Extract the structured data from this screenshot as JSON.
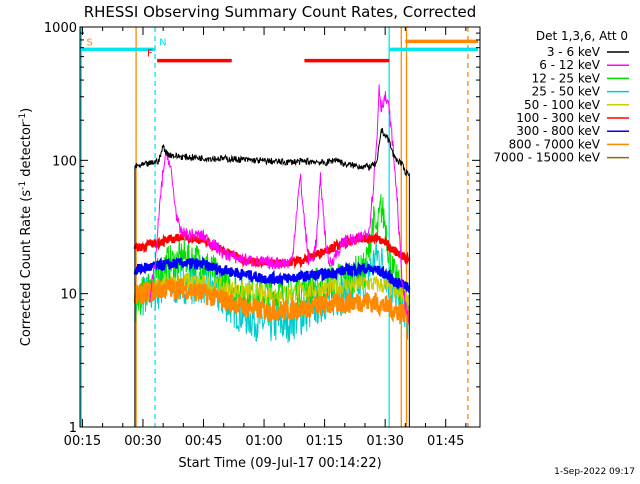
{
  "chart_data": {
    "type": "line",
    "title": "RHESSI Observing Summary Count Rates, Corrected",
    "xlabel": "Start Time (09-Jul-17 00:14:22)",
    "ylabel": "Corrected Count Rate (s⁻¹ detector⁻¹)",
    "ylabel_main": "Corrected Count Rate (s",
    "ylabel_sup1": "-1",
    "ylabel_mid": " detector",
    "ylabel_sup2": "-1",
    "ylabel_end": ")",
    "x_unit": "minutes after 00:00 UT",
    "xlim": [
      14.4,
      113.5
    ],
    "ylim": [
      1,
      1000
    ],
    "yscale": "log",
    "x_ticks": [
      {
        "value": 15,
        "label": "00:15"
      },
      {
        "value": 30,
        "label": "00:30"
      },
      {
        "value": 45,
        "label": "00:45"
      },
      {
        "value": 60,
        "label": "01:00"
      },
      {
        "value": 75,
        "label": "01:15"
      },
      {
        "value": 90,
        "label": "01:30"
      },
      {
        "value": 105,
        "label": "01:45"
      }
    ],
    "y_ticks": [
      {
        "value": 1,
        "label": "1"
      },
      {
        "value": 10,
        "label": "10"
      },
      {
        "value": 100,
        "label": "100"
      },
      {
        "value": 1000,
        "label": "1000"
      }
    ],
    "legend_title": "Det 1,3,6, Att 0",
    "legend_position": "right",
    "series": [
      {
        "name": "3 - 6 keV",
        "color": "#000000",
        "x": [
          28.0,
          30,
          32,
          34,
          35,
          36,
          38,
          40,
          45,
          50,
          55,
          60,
          65,
          70,
          73,
          75,
          78,
          80,
          83,
          86,
          88,
          89,
          90,
          91,
          92,
          93,
          94,
          95,
          96
        ],
        "y": [
          90,
          92,
          95,
          100,
          128,
          112,
          108,
          106,
          104,
          103,
          101,
          99,
          97,
          98,
          98,
          95,
          102,
          93,
          91,
          89,
          95,
          170,
          155,
          140,
          110,
          100,
          95,
          82,
          80
        ]
      },
      {
        "name": "6 - 12 keV",
        "color": "#ff00ff",
        "x": [
          31.5,
          33,
          34,
          35,
          36,
          37,
          38,
          39,
          40,
          45,
          50,
          55,
          60,
          64,
          66,
          67,
          68,
          69,
          70,
          71,
          72,
          73,
          74,
          75,
          76,
          77,
          78,
          80,
          83,
          86,
          87,
          88,
          88.5,
          89,
          90,
          91,
          92,
          93,
          94,
          95,
          96
        ],
        "y": [
          9,
          16,
          40,
          85,
          115,
          80,
          45,
          30,
          28,
          27,
          20,
          18,
          17,
          17,
          17,
          18,
          40,
          75,
          35,
          18,
          18,
          25,
          75,
          30,
          17,
          18,
          20,
          25,
          25,
          30,
          60,
          150,
          370,
          250,
          300,
          240,
          120,
          50,
          15,
          8,
          6
        ]
      },
      {
        "name": "12 - 25 keV",
        "color": "#00dd00",
        "x": [
          28.0,
          30,
          32,
          34,
          36,
          38,
          40,
          45,
          50,
          55,
          60,
          65,
          70,
          75,
          80,
          85,
          86,
          87,
          88,
          89,
          90,
          91,
          92,
          93,
          94,
          95,
          96
        ],
        "y": [
          8,
          10,
          12,
          14,
          17,
          17,
          19,
          17,
          12,
          10,
          10,
          10,
          11,
          12,
          13,
          15,
          22,
          35,
          28,
          45,
          34,
          20,
          14,
          12,
          10,
          9,
          8
        ]
      },
      {
        "name": "25 - 50 keV",
        "color": "#00cccc",
        "x": [
          28.0,
          30,
          35,
          40,
          45,
          50,
          55,
          60,
          65,
          70,
          75,
          80,
          85,
          88,
          90,
          92,
          94,
          96
        ],
        "y": [
          9,
          9.5,
          11,
          12,
          12,
          9,
          7,
          6,
          6,
          7,
          9,
          10,
          12,
          20,
          15,
          10,
          8,
          6
        ]
      },
      {
        "name": "50 - 100 keV",
        "color": "#cccc00",
        "x": [
          28.0,
          30,
          35,
          40,
          45,
          50,
          55,
          60,
          65,
          70,
          75,
          80,
          85,
          90,
          93,
          96
        ],
        "y": [
          10,
          10.5,
          11.5,
          12.5,
          12,
          11,
          10.5,
          10,
          10,
          10.5,
          11,
          11.5,
          12,
          11.5,
          10,
          9.5
        ]
      },
      {
        "name": "100 - 300 keV",
        "color": "#ff0000",
        "x": [
          28.0,
          30,
          33,
          36,
          40,
          45,
          50,
          55,
          60,
          65,
          70,
          75,
          80,
          85,
          88,
          90,
          93,
          96
        ],
        "y": [
          22,
          22.5,
          24,
          25,
          27,
          25,
          21,
          18,
          17,
          17,
          18,
          21,
          24,
          26,
          26,
          24,
          20,
          18
        ]
      },
      {
        "name": "300 - 800 keV",
        "color": "#0000ff",
        "x": [
          28.0,
          30,
          33,
          36,
          40,
          45,
          50,
          55,
          60,
          65,
          70,
          75,
          80,
          85,
          88,
          90,
          93,
          96
        ],
        "y": [
          15,
          15.5,
          16,
          16.5,
          17,
          16.5,
          15,
          14,
          13,
          13,
          13.5,
          14,
          15,
          15.5,
          15,
          14,
          12,
          11.5
        ]
      },
      {
        "name": "800 - 7000 keV",
        "color": "#ff8800",
        "x": [
          28.0,
          30,
          33,
          36,
          40,
          45,
          50,
          55,
          60,
          65,
          70,
          75,
          80,
          85,
          88,
          90,
          93,
          96
        ],
        "y": [
          9.5,
          10,
          10.5,
          11,
          11,
          10,
          9,
          8,
          7.5,
          7.5,
          7.8,
          8.2,
          8.5,
          8.8,
          8.5,
          8,
          7.5,
          7
        ]
      },
      {
        "name": "7000 - 15000 keV",
        "color": "#996600",
        "x": [],
        "y": []
      }
    ],
    "flags": [
      {
        "label": "S",
        "color": "#ff8800",
        "y_level": 680,
        "segments": [
          [
            14.4,
            33.0
          ]
        ],
        "segment_color": "#00e5ee",
        "label_x": 16
      },
      {
        "label": "N",
        "color": "#00e5ee",
        "y_level": 680,
        "segments": [
          [
            91.0,
            113.0
          ]
        ],
        "segment_color": "#00e5ee",
        "label_x": 34
      },
      {
        "label": "F",
        "color": "#ff0000",
        "y_level": 560,
        "segments": [
          [
            33.5,
            52.0
          ],
          [
            70.0,
            91.0
          ]
        ],
        "segment_color": "#ff0000",
        "label_x": 31
      },
      {
        "label": "",
        "color": "#ff8800",
        "y_level": 780,
        "segments": [
          [
            95.0,
            113.0
          ]
        ],
        "segment_color": "#ff8800",
        "label_x": 95
      }
    ],
    "vertical_lines": [
      {
        "x": 14.7,
        "color": "#00e5ee",
        "dashed": false
      },
      {
        "x": 28.3,
        "color": "#ff8800",
        "dashed": false
      },
      {
        "x": 33.0,
        "color": "#00e5ee",
        "dashed": true
      },
      {
        "x": 91.0,
        "color": "#00e5ee",
        "dashed": false
      },
      {
        "x": 94.0,
        "color": "#ff8800",
        "dashed": false
      },
      {
        "x": 95.3,
        "color": "#ff8800",
        "dashed": false
      },
      {
        "x": 110.5,
        "color": "#ff8800",
        "dashed": true
      }
    ]
  },
  "footer": {
    "timestamp": "1-Sep-2022 09:17"
  }
}
